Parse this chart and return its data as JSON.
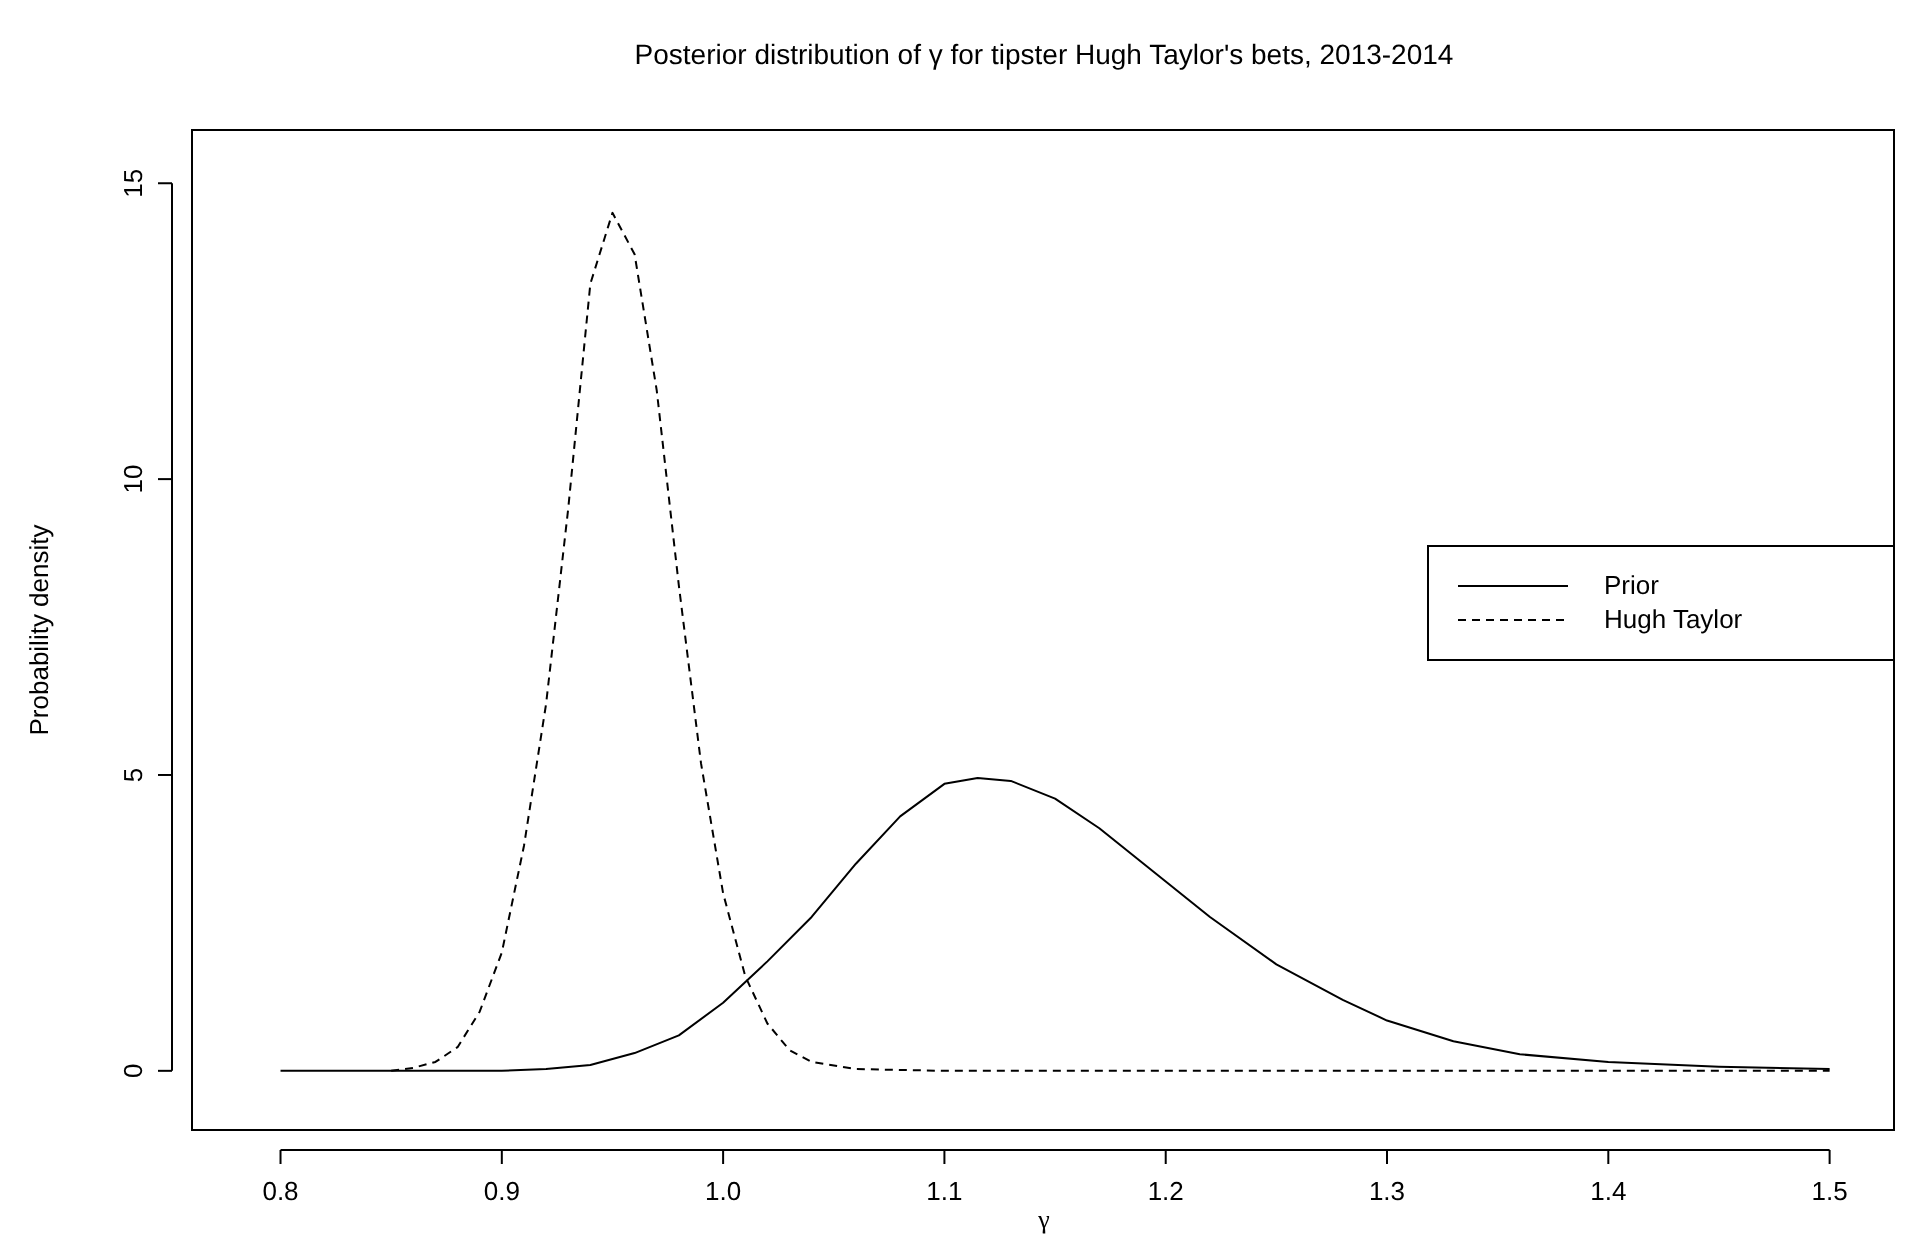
{
  "chart_data": {
    "type": "line",
    "title": "Posterior distribution of γ for tipster Hugh Taylor's bets, 2013-2014",
    "xlabel": "γ",
    "ylabel": "Probability density",
    "xlim": [
      0.76,
      1.53
    ],
    "ylim": [
      -1,
      15.9
    ],
    "xticks": [
      0.8,
      0.9,
      {
        "value": 1,
        "label": "1.0"
      },
      1.1,
      1.2,
      1.3,
      1.4,
      1.5
    ],
    "yticks": [
      0,
      5,
      10,
      15
    ],
    "legend": "right",
    "series": [
      {
        "name": "Prior",
        "color": "#000000",
        "line_style": "solid",
        "x": [
          0.8,
          0.9,
          0.92,
          0.94,
          0.96,
          0.98,
          1.0,
          1.02,
          1.04,
          1.06,
          1.08,
          1.1,
          1.115,
          1.13,
          1.15,
          1.17,
          1.2,
          1.22,
          1.25,
          1.28,
          1.3,
          1.33,
          1.36,
          1.4,
          1.45,
          1.5
        ],
        "values": [
          0,
          0,
          0.03,
          0.1,
          0.3,
          0.6,
          1.15,
          1.85,
          2.6,
          3.5,
          4.3,
          4.85,
          4.95,
          4.9,
          4.6,
          4.1,
          3.2,
          2.6,
          1.8,
          1.2,
          0.85,
          0.5,
          0.28,
          0.15,
          0.07,
          0.03
        ]
      },
      {
        "name": "Hugh Taylor",
        "color": "#000000",
        "line_style": "dashed",
        "x": [
          0.85,
          0.86,
          0.87,
          0.88,
          0.89,
          0.9,
          0.91,
          0.92,
          0.93,
          0.94,
          0.95,
          0.96,
          0.97,
          0.98,
          0.99,
          1.0,
          1.01,
          1.02,
          1.03,
          1.04,
          1.06,
          1.1,
          1.5
        ],
        "values": [
          0,
          0.05,
          0.15,
          0.4,
          1.0,
          2.0,
          3.8,
          6.2,
          9.5,
          13.3,
          14.5,
          13.8,
          11.5,
          8.2,
          5.2,
          3.0,
          1.6,
          0.8,
          0.35,
          0.15,
          0.03,
          0,
          0
        ]
      }
    ]
  }
}
